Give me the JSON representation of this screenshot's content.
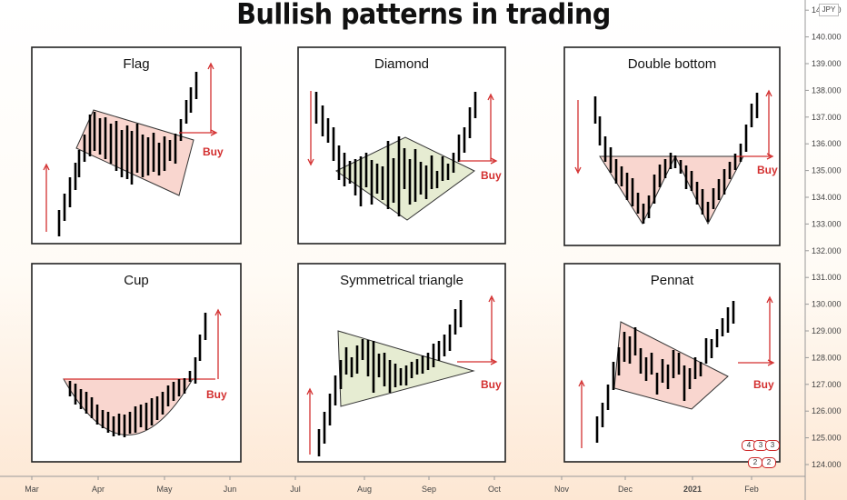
{
  "title": "Bullish patterns in trading",
  "currency_label": "JPY",
  "badges": [
    "4",
    "3",
    "3",
    "2",
    "2"
  ],
  "colors": {
    "candle": "#000000",
    "arrow": "#d32f2f",
    "pink_fill": "#f9d6cf",
    "green_fill": "#e6ecd2",
    "outline": "#333333"
  },
  "chart_data": {
    "type": "bar",
    "title": "Bullish patterns in trading",
    "x_tick_labels": [
      "Mar",
      "Apr",
      "May",
      "Jun",
      "Jul",
      "Aug",
      "Sep",
      "Oct",
      "Nov",
      "Dec",
      "2021",
      "Feb"
    ],
    "y_tick_labels": [
      "124.000",
      "125.000",
      "126.000",
      "127.000",
      "128.000",
      "129.000",
      "130.000",
      "131.000",
      "132.000",
      "133.000",
      "134.000",
      "135.000",
      "136.000",
      "137.000",
      "138.000",
      "139.000",
      "140.000",
      "141.000"
    ],
    "ylim": [
      124,
      141
    ],
    "grid": false,
    "panels": [
      {
        "name": "Flag",
        "signal": "Buy"
      },
      {
        "name": "Diamond",
        "signal": "Buy"
      },
      {
        "name": "Double bottom",
        "signal": "Buy"
      },
      {
        "name": "Cup",
        "signal": "Buy"
      },
      {
        "name": "Symmetrical triangle",
        "signal": "Buy"
      },
      {
        "name": "Pennat",
        "signal": "Buy"
      }
    ]
  }
}
